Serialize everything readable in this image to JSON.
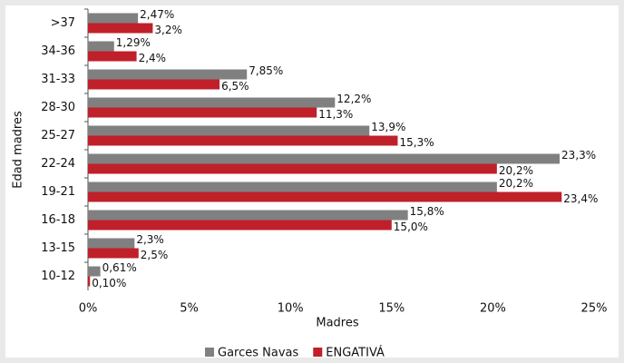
{
  "chart_data": {
    "type": "hbar",
    "xlabel": "Madres",
    "ylabel": "Edad madres",
    "categories": [
      ">37",
      "34-36",
      "31-33",
      "28-30",
      "25-27",
      "22-24",
      "19-21",
      "16-18",
      "13-15",
      "10-12"
    ],
    "series": [
      {
        "name": "Garces Navas",
        "color": "#808080",
        "values": [
          2.47,
          1.29,
          7.85,
          12.2,
          13.9,
          23.3,
          20.2,
          15.8,
          2.3,
          0.61
        ],
        "value_labels": [
          "2,47%",
          "1,29%",
          "7,85%",
          "12,2%",
          "13,9%",
          "23,3%",
          "20,2%",
          "15,8%",
          "2,3%",
          "0,61%"
        ]
      },
      {
        "name": "ENGATIVÁ",
        "color": "#c0202a",
        "values": [
          3.2,
          2.4,
          6.5,
          11.3,
          15.3,
          20.2,
          23.4,
          15.0,
          2.5,
          0.1
        ],
        "value_labels": [
          "3,2%",
          "2,4%",
          "6,5%",
          "11,3%",
          "15,3%",
          "20,2%",
          "23,4%",
          "15,0%",
          "2,5%",
          "0,10%"
        ]
      }
    ],
    "xlim": [
      0,
      25
    ],
    "xticks": [
      {
        "value": 0,
        "label": "0%"
      },
      {
        "value": 5,
        "label": "5%"
      },
      {
        "value": 10,
        "label": "10%"
      },
      {
        "value": 15,
        "label": "15%"
      },
      {
        "value": 20,
        "label": "20%"
      },
      {
        "value": 25,
        "label": "25%"
      }
    ],
    "grid": false,
    "legend": "bottom"
  }
}
